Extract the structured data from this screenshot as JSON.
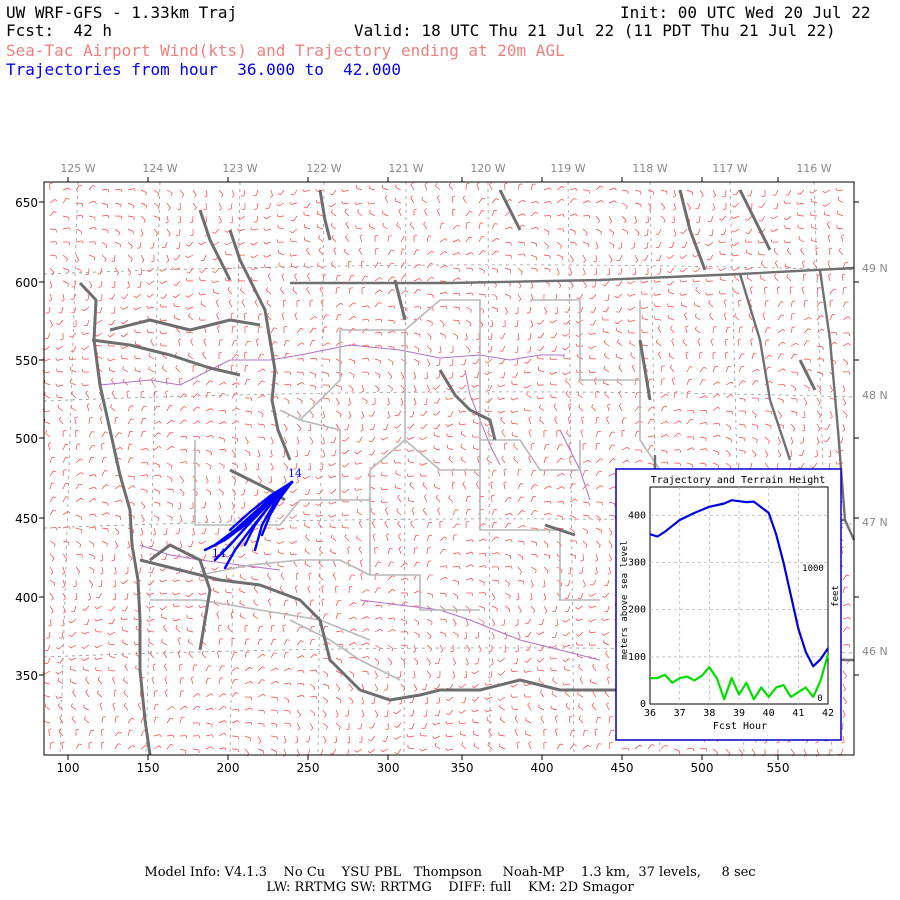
{
  "header": {
    "model": "UW WRF-GFS - 1.33km Traj",
    "init": "Init: 00 UTC Wed 20 Jul 22",
    "fcst": "Fcst:  42 h",
    "valid": "Valid: 18 UTC Thu 21 Jul 22 (11 PDT Thu 21 Jul 22)",
    "subtitle": "Sea-Tac Airport Wind(kts) and Trajectory ending at 20m AGL",
    "trajectory_range": "Trajectories from hour  36.000 to  42.000"
  },
  "colors": {
    "header_text": "#000000",
    "subtitle": "#f08080",
    "trajectory": "#0000ff",
    "wind_barbs": "#ff4040",
    "coastline": "#707070",
    "county_lines": "#b0b0b0",
    "rivers": "#a060c0",
    "terrain_line": "#0000dd",
    "height_line": "#00dd00"
  },
  "map": {
    "x_ticks": [
      "100",
      "150",
      "200",
      "250",
      "300",
      "350",
      "400",
      "450",
      "500",
      "550"
    ],
    "y_ticks": [
      "650",
      "600",
      "550",
      "500",
      "450",
      "400",
      "350"
    ],
    "lon_labels": [
      "125 W",
      "124 W",
      "123 W",
      "122 W",
      "121 W",
      "120 W",
      "119 W",
      "118 W",
      "117 W",
      "116 W"
    ],
    "lat_labels": [
      "49 N",
      "48 N",
      "47 N",
      "46 N"
    ],
    "trajectory_labels": [
      "14",
      "14"
    ]
  },
  "inset": {
    "title": "Trajectory and Terrain Height",
    "ylabel_left": "meters above sea level",
    "ylabel_right": "feet",
    "xlabel": "Fcst Hour",
    "right_tick": "1000",
    "right_zero": "0",
    "chart_data": {
      "type": "line",
      "xlabel": "Fcst Hour",
      "ylabel": "meters above sea level",
      "xlim": [
        36,
        42
      ],
      "ylim": [
        0,
        460
      ],
      "x_ticks": [
        "36",
        "37",
        "38",
        "39",
        "40",
        "41",
        "42"
      ],
      "y_ticks": [
        "0",
        "100",
        "200",
        "300",
        "400"
      ],
      "grid": true,
      "series": [
        {
          "color": "#0000dd",
          "x": [
            36,
            36.25,
            36.5,
            37,
            37.5,
            38,
            38.5,
            38.75,
            39,
            39.25,
            39.5,
            40,
            40.25,
            40.5,
            40.75,
            41,
            41.25,
            41.5,
            41.75,
            42
          ],
          "values": [
            360,
            355,
            365,
            390,
            405,
            418,
            425,
            432,
            430,
            428,
            429,
            405,
            360,
            300,
            230,
            160,
            110,
            80,
            95,
            118
          ]
        },
        {
          "color": "#00dd00",
          "x": [
            36,
            36.25,
            36.5,
            36.75,
            37,
            37.25,
            37.5,
            37.75,
            38,
            38.25,
            38.5,
            38.75,
            39,
            39.25,
            39.5,
            39.75,
            40,
            40.25,
            40.5,
            40.75,
            41,
            41.25,
            41.5,
            41.75,
            42
          ],
          "values": [
            55,
            55,
            62,
            45,
            55,
            58,
            50,
            60,
            78,
            55,
            10,
            55,
            20,
            45,
            10,
            35,
            15,
            35,
            40,
            15,
            25,
            35,
            15,
            50,
            105
          ]
        }
      ]
    }
  },
  "footer": {
    "line1": "Model Info: V4.1.3    No Cu    YSU PBL   Thompson     Noah-MP    1.3 km,  37 levels,     8 sec",
    "line2": "LW: RRTMG SW: RRTMG    DIFF: full    KM: 2D Smagor"
  }
}
